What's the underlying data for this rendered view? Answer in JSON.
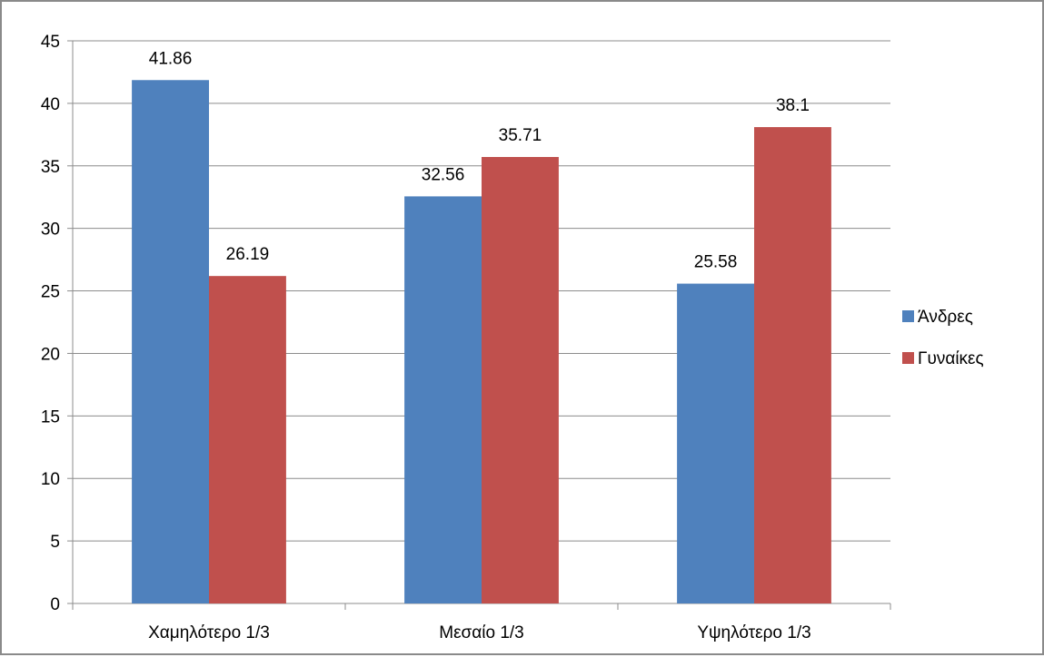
{
  "chart_data": {
    "type": "bar",
    "title": "",
    "xlabel": "",
    "ylabel": "",
    "categories": [
      "Χαμηλότερο 1/3",
      "Μεσαίο 1/3",
      "Υψηλότερο 1/3"
    ],
    "series": [
      {
        "name": "Άνδρες",
        "color": "#4f81bd",
        "values": [
          41.86,
          32.56,
          25.58
        ]
      },
      {
        "name": "Γυναίκες",
        "color": "#c0504d",
        "values": [
          26.19,
          35.71,
          38.1
        ]
      }
    ],
    "ylim": [
      0,
      45
    ],
    "yticks": [
      0,
      5,
      10,
      15,
      20,
      25,
      30,
      35,
      40,
      45
    ],
    "grid": true,
    "legend": "right",
    "data_labels": true
  }
}
